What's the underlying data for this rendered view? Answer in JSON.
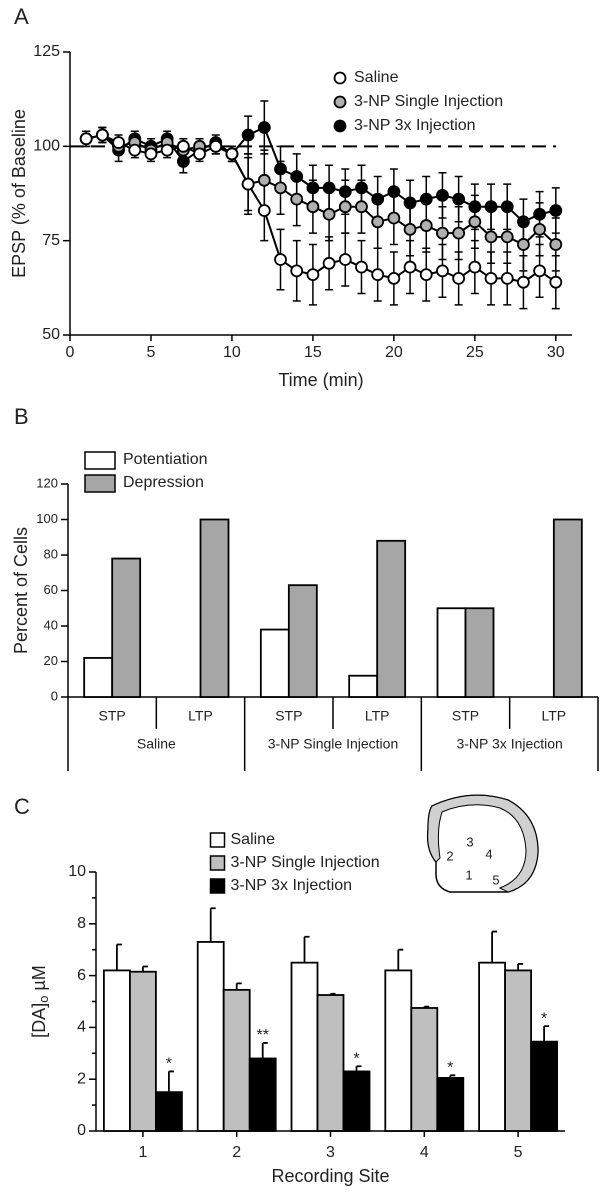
{
  "chart_data": [
    {
      "type": "line",
      "panel_label": "A",
      "xlabel": "Time (min)",
      "ylabel": "EPSP (% of Baseline",
      "x": [
        1,
        2,
        3,
        4,
        5,
        6,
        7,
        8,
        9,
        10,
        11,
        12,
        13,
        14,
        15,
        16,
        17,
        18,
        19,
        20,
        21,
        22,
        23,
        24,
        25,
        26,
        27,
        28,
        29,
        30
      ],
      "xlim": [
        0,
        31
      ],
      "xticks": [
        0,
        5,
        10,
        15,
        20,
        25,
        30
      ],
      "ylim": [
        50,
        125
      ],
      "yticks": [
        50,
        75,
        100,
        125
      ],
      "reference_line": 100,
      "legend": "upper right",
      "series": [
        {
          "name": "Saline",
          "color": "#ffffff",
          "values": [
            102,
            103,
            101,
            99,
            98,
            99,
            100,
            98,
            100,
            98,
            90,
            83,
            70,
            67,
            66,
            69,
            70,
            68,
            66,
            65,
            68,
            66,
            67,
            65,
            68,
            65,
            65,
            64,
            67,
            64
          ],
          "errors": [
            2,
            2,
            2,
            2,
            2,
            2,
            2,
            2,
            2,
            2,
            7,
            8,
            8,
            8,
            8,
            7,
            7,
            7,
            7,
            7,
            7,
            7,
            7,
            7,
            7,
            7,
            7,
            7,
            7,
            7
          ]
        },
        {
          "name": "3-NP Single Injection",
          "color": "#b0b0b0",
          "values": [
            102,
            103,
            100,
            101,
            99,
            101,
            99,
            100,
            100,
            98,
            90,
            91,
            89,
            86,
            84,
            82,
            84,
            84,
            80,
            81,
            78,
            79,
            77,
            77,
            80,
            76,
            76,
            74,
            78,
            74
          ],
          "errors": [
            2,
            2,
            2,
            2,
            2,
            2,
            2,
            2,
            2,
            2,
            8,
            8,
            7,
            7,
            7,
            7,
            7,
            7,
            7,
            7,
            7,
            7,
            7,
            7,
            7,
            7,
            7,
            7,
            7,
            7
          ]
        },
        {
          "name": "3-NP 3x Injection",
          "color": "#000000",
          "values": [
            102,
            103,
            99,
            102,
            100,
            102,
            96,
            99,
            101,
            98,
            103,
            105,
            94,
            92,
            89,
            89,
            88,
            89,
            86,
            88,
            85,
            86,
            87,
            86,
            84,
            84,
            84,
            80,
            82,
            83
          ],
          "errors": [
            2,
            2,
            3,
            2,
            2,
            2,
            3,
            2,
            2,
            2,
            5,
            7,
            6,
            6,
            6,
            6,
            6,
            6,
            6,
            6,
            6,
            6,
            6,
            6,
            6,
            6,
            6,
            6,
            6,
            6
          ]
        }
      ]
    },
    {
      "type": "bar",
      "panel_label": "B",
      "ylabel": "Percent of Cells",
      "categories": [
        "STP",
        "LTP",
        "STP",
        "LTP",
        "STP",
        "LTP"
      ],
      "groups": [
        "Saline",
        "3-NP Single Injection",
        "3-NP 3x Injection"
      ],
      "ylim": [
        0,
        120
      ],
      "yticks": [
        0,
        20,
        40,
        60,
        80,
        100,
        120
      ],
      "legend": "upper left",
      "series": [
        {
          "name": "Potentiation",
          "color": "#ffffff",
          "values": [
            22,
            0,
            38,
            12,
            50,
            0
          ]
        },
        {
          "name": "Depression",
          "color": "#a6a6a6",
          "values": [
            78,
            100,
            63,
            88,
            50,
            100
          ]
        }
      ]
    },
    {
      "type": "bar",
      "panel_label": "C",
      "ylabel": "[DA]",
      "ylabel_subscript": "o",
      "ylabel_unit": "µM",
      "xlabel": "Recording Site",
      "categories": [
        "1",
        "2",
        "3",
        "4",
        "5"
      ],
      "ylim": [
        0,
        10
      ],
      "yticks": [
        0,
        2,
        4,
        6,
        8,
        10
      ],
      "minor_yticks": [
        1,
        3,
        5,
        7,
        9
      ],
      "legend": "upper center",
      "inset_labels": [
        "1",
        "2",
        "3",
        "4",
        "5"
      ],
      "series": [
        {
          "name": "Saline",
          "color": "#ffffff",
          "values": [
            6.2,
            7.3,
            6.5,
            6.2,
            6.5
          ],
          "errors": [
            1.0,
            1.3,
            1.0,
            0.8,
            1.2
          ]
        },
        {
          "name": "3-NP Single Injection",
          "color": "#bfbfbf",
          "values": [
            6.15,
            5.45,
            5.25,
            4.75,
            6.2
          ],
          "errors": [
            0.2,
            0.25,
            0.05,
            0.05,
            0.25
          ]
        },
        {
          "name": "3-NP 3x Injection",
          "color": "#000000",
          "values": [
            1.5,
            2.8,
            2.3,
            2.05,
            3.45
          ],
          "errors": [
            0.8,
            0.6,
            0.2,
            0.1,
            0.6
          ],
          "labels": [
            "*",
            "**",
            "*",
            "*",
            "*"
          ]
        }
      ]
    }
  ]
}
